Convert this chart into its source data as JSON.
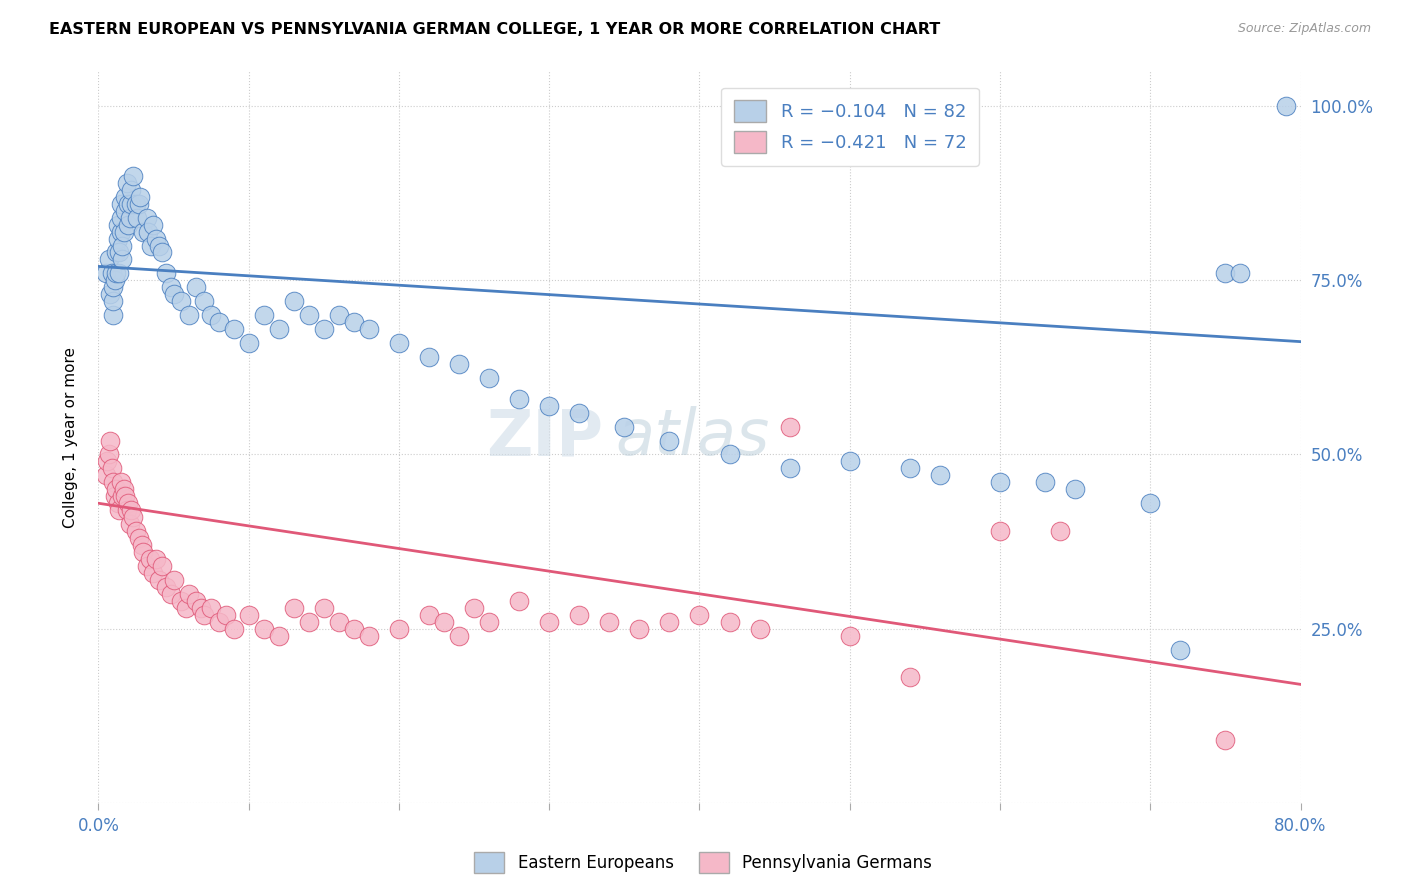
{
  "title": "EASTERN EUROPEAN VS PENNSYLVANIA GERMAN COLLEGE, 1 YEAR OR MORE CORRELATION CHART",
  "source": "Source: ZipAtlas.com",
  "ylabel": "College, 1 year or more",
  "xlim": [
    0.0,
    0.8
  ],
  "ylim": [
    0.0,
    1.05
  ],
  "blue_color": "#b8d0e8",
  "pink_color": "#f5b8c8",
  "blue_line_color": "#4a7fc0",
  "pink_line_color": "#e05878",
  "legend_entry_blue": "Eastern Europeans",
  "legend_entry_pink": "Pennsylvania Germans",
  "watermark_zip": "ZIP",
  "watermark_atlas": "atlas",
  "blue_scatter_x": [
    0.005,
    0.007,
    0.008,
    0.009,
    0.01,
    0.01,
    0.01,
    0.011,
    0.012,
    0.012,
    0.013,
    0.013,
    0.014,
    0.014,
    0.015,
    0.015,
    0.015,
    0.016,
    0.016,
    0.017,
    0.018,
    0.018,
    0.019,
    0.02,
    0.02,
    0.021,
    0.022,
    0.022,
    0.023,
    0.025,
    0.026,
    0.027,
    0.028,
    0.03,
    0.032,
    0.033,
    0.035,
    0.036,
    0.038,
    0.04,
    0.042,
    0.045,
    0.048,
    0.05,
    0.055,
    0.06,
    0.065,
    0.07,
    0.075,
    0.08,
    0.09,
    0.1,
    0.11,
    0.12,
    0.13,
    0.14,
    0.15,
    0.16,
    0.17,
    0.18,
    0.2,
    0.22,
    0.24,
    0.26,
    0.28,
    0.3,
    0.32,
    0.35,
    0.38,
    0.42,
    0.46,
    0.5,
    0.54,
    0.56,
    0.6,
    0.63,
    0.65,
    0.7,
    0.72,
    0.75,
    0.76,
    0.79
  ],
  "blue_scatter_y": [
    0.76,
    0.78,
    0.73,
    0.76,
    0.7,
    0.72,
    0.74,
    0.75,
    0.76,
    0.79,
    0.81,
    0.83,
    0.76,
    0.79,
    0.82,
    0.84,
    0.86,
    0.78,
    0.8,
    0.82,
    0.85,
    0.87,
    0.89,
    0.83,
    0.86,
    0.84,
    0.86,
    0.88,
    0.9,
    0.86,
    0.84,
    0.86,
    0.87,
    0.82,
    0.84,
    0.82,
    0.8,
    0.83,
    0.81,
    0.8,
    0.79,
    0.76,
    0.74,
    0.73,
    0.72,
    0.7,
    0.74,
    0.72,
    0.7,
    0.69,
    0.68,
    0.66,
    0.7,
    0.68,
    0.72,
    0.7,
    0.68,
    0.7,
    0.69,
    0.68,
    0.66,
    0.64,
    0.63,
    0.61,
    0.58,
    0.57,
    0.56,
    0.54,
    0.52,
    0.5,
    0.48,
    0.49,
    0.48,
    0.47,
    0.46,
    0.46,
    0.45,
    0.43,
    0.22,
    0.76,
    0.76,
    1.0
  ],
  "pink_scatter_x": [
    0.005,
    0.006,
    0.007,
    0.008,
    0.009,
    0.01,
    0.011,
    0.012,
    0.013,
    0.014,
    0.015,
    0.016,
    0.017,
    0.018,
    0.019,
    0.02,
    0.021,
    0.022,
    0.023,
    0.025,
    0.027,
    0.029,
    0.03,
    0.032,
    0.034,
    0.036,
    0.038,
    0.04,
    0.042,
    0.045,
    0.048,
    0.05,
    0.055,
    0.058,
    0.06,
    0.065,
    0.068,
    0.07,
    0.075,
    0.08,
    0.085,
    0.09,
    0.1,
    0.11,
    0.12,
    0.13,
    0.14,
    0.15,
    0.16,
    0.17,
    0.18,
    0.2,
    0.22,
    0.23,
    0.24,
    0.25,
    0.26,
    0.28,
    0.3,
    0.32,
    0.34,
    0.36,
    0.38,
    0.4,
    0.42,
    0.44,
    0.46,
    0.5,
    0.54,
    0.6,
    0.64,
    0.75
  ],
  "pink_scatter_y": [
    0.47,
    0.49,
    0.5,
    0.52,
    0.48,
    0.46,
    0.44,
    0.45,
    0.43,
    0.42,
    0.46,
    0.44,
    0.45,
    0.44,
    0.42,
    0.43,
    0.4,
    0.42,
    0.41,
    0.39,
    0.38,
    0.37,
    0.36,
    0.34,
    0.35,
    0.33,
    0.35,
    0.32,
    0.34,
    0.31,
    0.3,
    0.32,
    0.29,
    0.28,
    0.3,
    0.29,
    0.28,
    0.27,
    0.28,
    0.26,
    0.27,
    0.25,
    0.27,
    0.25,
    0.24,
    0.28,
    0.26,
    0.28,
    0.26,
    0.25,
    0.24,
    0.25,
    0.27,
    0.26,
    0.24,
    0.28,
    0.26,
    0.29,
    0.26,
    0.27,
    0.26,
    0.25,
    0.26,
    0.27,
    0.26,
    0.25,
    0.54,
    0.24,
    0.18,
    0.39,
    0.39,
    0.09
  ]
}
